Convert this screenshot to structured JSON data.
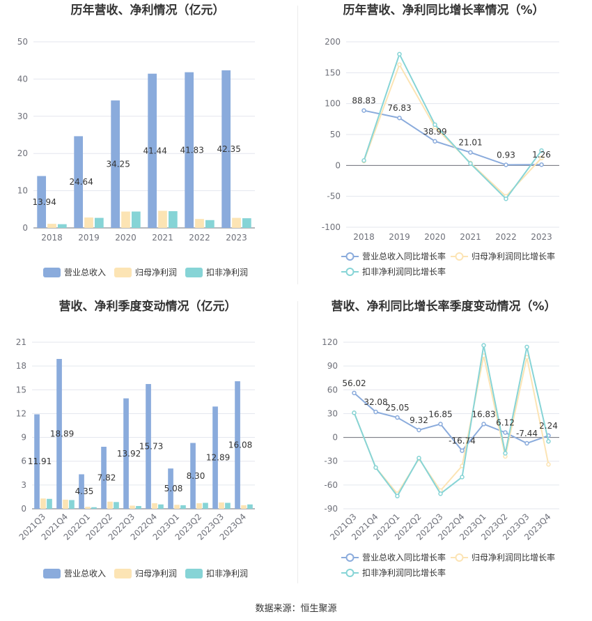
{
  "footer": "数据来源：恒生聚源",
  "chart_data": [
    {
      "type": "bar",
      "title": "历年营收、净利情况（亿元）",
      "categories": [
        "2018",
        "2019",
        "2020",
        "2021",
        "2022",
        "2023"
      ],
      "ylim": [
        0,
        50
      ],
      "yticks": [
        0,
        10,
        20,
        30,
        40,
        50
      ],
      "grid": true,
      "legend_position": "bottom",
      "label_series": 0,
      "series": [
        {
          "name": "营业总收入",
          "color": "#8aabdc",
          "values": [
            13.94,
            24.64,
            34.25,
            41.44,
            41.83,
            42.35
          ]
        },
        {
          "name": "归母净利润",
          "color": "#fce4b4",
          "values": [
            1.1,
            2.8,
            4.4,
            4.6,
            2.4,
            2.7
          ]
        },
        {
          "name": "扣非净利润",
          "color": "#86d4d6",
          "values": [
            1.0,
            2.7,
            4.4,
            4.5,
            2.1,
            2.6
          ]
        }
      ]
    },
    {
      "type": "line",
      "title": "历年营收、净利同比增长率情况（%）",
      "categories": [
        "2018",
        "2019",
        "2020",
        "2021",
        "2022",
        "2023"
      ],
      "ylim": [
        -100,
        200
      ],
      "yticks": [
        -100,
        -50,
        0,
        50,
        100,
        150,
        200
      ],
      "grid": true,
      "legend_position": "bottom",
      "label_series": 0,
      "series": [
        {
          "name": "营业总收入同比增长率",
          "color": "#8aabdc",
          "values": [
            88.83,
            76.83,
            38.99,
            21.01,
            0.93,
            1.26
          ]
        },
        {
          "name": "归母净利润同比增长率",
          "color": "#fce4b4",
          "values": [
            7,
            163,
            62,
            4,
            -50,
            12
          ]
        },
        {
          "name": "扣非净利润同比增长率",
          "color": "#86d4d6",
          "values": [
            8,
            180,
            66,
            3,
            -54,
            24
          ]
        }
      ]
    },
    {
      "type": "bar",
      "title": "营收、净利季度变动情况（亿元）",
      "categories": [
        "2021Q3",
        "2021Q4",
        "2022Q1",
        "2022Q2",
        "2022Q3",
        "2022Q4",
        "2023Q1",
        "2023Q2",
        "2023Q3",
        "2023Q4"
      ],
      "ylim": [
        0,
        21
      ],
      "yticks": [
        0,
        3,
        6,
        9,
        12,
        15,
        18,
        21
      ],
      "grid": true,
      "legend_position": "bottom",
      "label_series": 0,
      "series": [
        {
          "name": "营业总收入",
          "color": "#8aabdc",
          "values": [
            11.91,
            18.89,
            4.35,
            7.82,
            13.92,
            15.73,
            5.08,
            8.3,
            12.89,
            16.08
          ]
        },
        {
          "name": "归母净利润",
          "color": "#fce4b4",
          "values": [
            1.3,
            1.15,
            0.25,
            0.9,
            0.4,
            0.7,
            0.5,
            0.7,
            0.8,
            0.45
          ]
        },
        {
          "name": "扣非净利润",
          "color": "#86d4d6",
          "values": [
            1.25,
            1.1,
            0.2,
            0.85,
            0.35,
            0.55,
            0.45,
            0.75,
            0.75,
            0.55
          ]
        }
      ]
    },
    {
      "type": "line",
      "title": "营收、净利同比增长率季度变动情况（%）",
      "categories": [
        "2021Q3",
        "2021Q4",
        "2022Q1",
        "2022Q2",
        "2022Q3",
        "2022Q4",
        "2023Q1",
        "2023Q2",
        "2023Q3",
        "2023Q4"
      ],
      "ylim": [
        -90,
        120
      ],
      "yticks": [
        -90,
        -60,
        -30,
        0,
        30,
        60,
        90,
        120
      ],
      "grid": true,
      "legend_position": "bottom",
      "label_series": 0,
      "series": [
        {
          "name": "营业总收入同比增长率",
          "color": "#8aabdc",
          "values": [
            56.02,
            32.08,
            25.05,
            9.32,
            16.85,
            -16.74,
            16.83,
            6.12,
            -7.44,
            2.24
          ]
        },
        {
          "name": "归母净利润同比增长率",
          "color": "#fce4b4",
          "values": [
            31,
            -38,
            -71,
            -27,
            -67,
            -36,
            103,
            -24,
            101,
            -34
          ]
        },
        {
          "name": "扣非净利润同比增长率",
          "color": "#86d4d6",
          "values": [
            31,
            -38,
            -74,
            -26,
            -71,
            -50,
            116,
            -20,
            114,
            -5
          ]
        }
      ]
    }
  ]
}
